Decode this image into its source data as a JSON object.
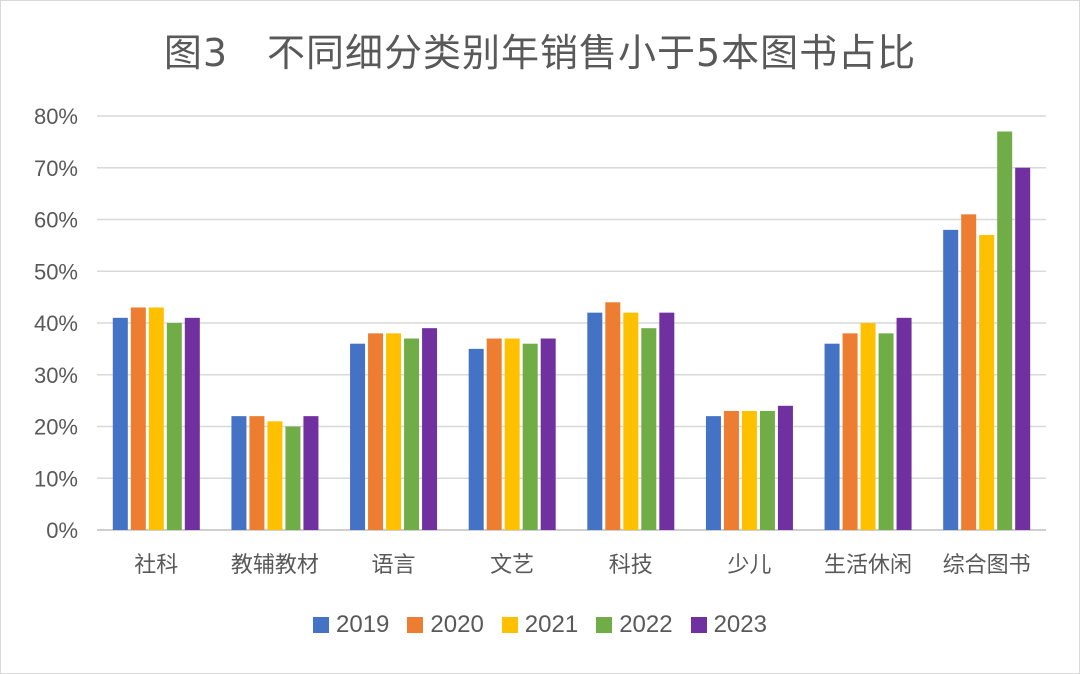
{
  "chart_data": {
    "type": "bar",
    "title": "图3　不同细分类别年销售小于5本图书占比",
    "categories": [
      "社科",
      "教辅教材",
      "语言",
      "文艺",
      "科技",
      "少儿",
      "生活休闲",
      "综合图书"
    ],
    "series": [
      {
        "name": "2019",
        "color": "#4472C4",
        "values": [
          41,
          22,
          36,
          35,
          42,
          22,
          36,
          58
        ]
      },
      {
        "name": "2020",
        "color": "#ED7D31",
        "values": [
          43,
          22,
          38,
          37,
          44,
          23,
          38,
          61
        ]
      },
      {
        "name": "2021",
        "color": "#FFC000",
        "values": [
          43,
          21,
          38,
          37,
          42,
          23,
          40,
          57
        ]
      },
      {
        "name": "2022",
        "color": "#70AD47",
        "values": [
          40,
          20,
          37,
          36,
          39,
          23,
          38,
          77
        ]
      },
      {
        "name": "2023",
        "color": "#7030A0",
        "values": [
          41,
          22,
          39,
          37,
          42,
          24,
          41,
          70
        ]
      }
    ],
    "y_ticks": [
      "0%",
      "10%",
      "20%",
      "30%",
      "40%",
      "50%",
      "60%",
      "70%",
      "80%"
    ],
    "ylim": [
      0,
      80
    ],
    "y_unit": "percent",
    "grid": true,
    "legend_position": "bottom"
  }
}
